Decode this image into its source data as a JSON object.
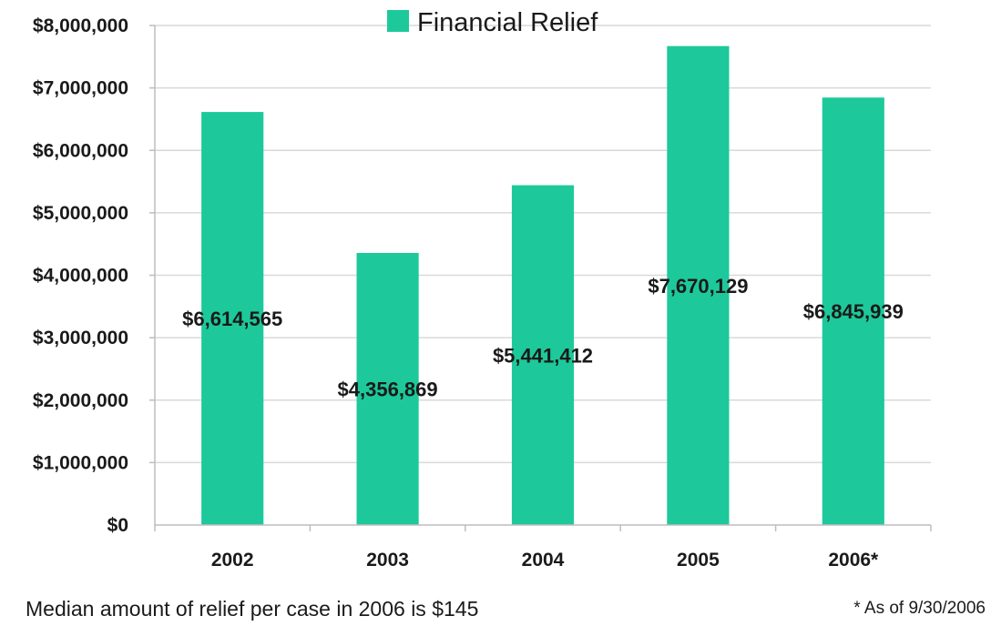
{
  "chart_data": {
    "type": "bar",
    "categories": [
      "2002",
      "2003",
      "2004",
      "2005",
      "2006*"
    ],
    "series": [
      {
        "name": "Financial Relief",
        "values": [
          6614565,
          4356869,
          5441412,
          7670129,
          6845939
        ],
        "color": "#1dc99a"
      }
    ],
    "data_labels": [
      "$6,614,565",
      "$4,356,869",
      "$5,441,412",
      "$7,670,129",
      "$6,845,939"
    ],
    "yticks": [
      0,
      1000000,
      2000000,
      3000000,
      4000000,
      5000000,
      6000000,
      7000000,
      8000000
    ],
    "ytick_labels": [
      "$0",
      "$1,000,000",
      "$2,000,000",
      "$3,000,000",
      "$4,000,000",
      "$5,000,000",
      "$6,000,000",
      "$7,000,000",
      "$8,000,000"
    ],
    "ylim": [
      0,
      8000000
    ],
    "grid": true,
    "legend_position": "top-center",
    "title": "",
    "xlabel": "",
    "ylabel": ""
  },
  "notes": {
    "median": "Median amount of relief per case in 2006 is $145",
    "asof": "* As of 9/30/2006"
  }
}
